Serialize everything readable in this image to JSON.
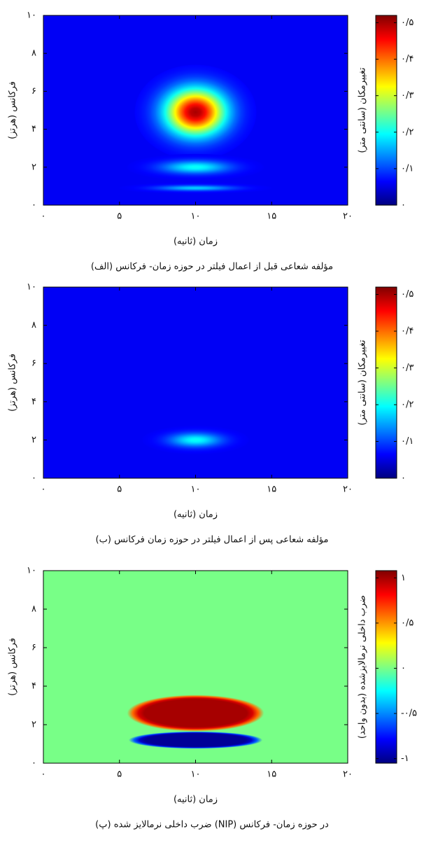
{
  "chart_data": [
    {
      "type": "heatmap",
      "colormap": "jet",
      "caption": "(الف) مؤلفه شعاعی قبل از اعمال فیلتر در حوزه زمان- فرکانس",
      "xlabel": "زمان (ثانیه)",
      "ylabel": "فرکانس (هرتز)",
      "colorbar_label": "تغییرمکان (سانتی متر)",
      "xlim": [
        0,
        20
      ],
      "ylim": [
        0,
        10
      ],
      "xticks": [
        {
          "value": 0,
          "label": "۰"
        },
        {
          "value": 5,
          "label": "۵"
        },
        {
          "value": 10,
          "label": "۱۰"
        },
        {
          "value": 15,
          "label": "۱۵"
        },
        {
          "value": 20,
          "label": "۲۰"
        }
      ],
      "yticks": [
        {
          "value": 0,
          "label": "۰"
        },
        {
          "value": 2,
          "label": "۲"
        },
        {
          "value": 4,
          "label": "۴"
        },
        {
          "value": 6,
          "label": "۶"
        },
        {
          "value": 8,
          "label": "۸"
        },
        {
          "value": 10,
          "label": "۱۰"
        }
      ],
      "clim": [
        0,
        0.52
      ],
      "cticks": [
        {
          "value": 0,
          "label": "۰"
        },
        {
          "value": 0.1,
          "label": "۰/۱"
        },
        {
          "value": 0.2,
          "label": "۰/۲"
        },
        {
          "value": 0.3,
          "label": "۰/۳"
        },
        {
          "value": 0.4,
          "label": "۰/۴"
        },
        {
          "value": 0.5,
          "label": "۰/۵"
        }
      ],
      "background_value": 0.06,
      "profile": "gaussian",
      "blobs": [
        {
          "x": 10,
          "y": 4.9,
          "width": 8,
          "height": 5,
          "value": 0.5
        },
        {
          "x": 10,
          "y": 2.0,
          "width": 9,
          "height": 1.4,
          "value": 0.2
        },
        {
          "x": 10,
          "y": 0.9,
          "width": 10,
          "height": 0.6,
          "value": 0.17
        }
      ]
    },
    {
      "type": "heatmap",
      "colormap": "jet",
      "caption": "(ب) مؤلفه شعاعی پس از اعمال فیلتر در حوزه زمان فرکانس",
      "xlabel": "زمان (ثانیه)",
      "ylabel": "فرکانس (هرتز)",
      "colorbar_label": "تغییرمکان (سانتی متر)",
      "xlim": [
        0,
        20
      ],
      "ylim": [
        0,
        10
      ],
      "xticks": [
        {
          "value": 0,
          "label": "۰"
        },
        {
          "value": 5,
          "label": "۵"
        },
        {
          "value": 10,
          "label": "۱۰"
        },
        {
          "value": 15,
          "label": "۱۵"
        },
        {
          "value": 20,
          "label": "۲۰"
        }
      ],
      "yticks": [
        {
          "value": 0,
          "label": "۰"
        },
        {
          "value": 2,
          "label": "۲"
        },
        {
          "value": 4,
          "label": "۴"
        },
        {
          "value": 6,
          "label": "۶"
        },
        {
          "value": 8,
          "label": "۸"
        },
        {
          "value": 10,
          "label": "۱۰"
        }
      ],
      "clim": [
        0,
        0.52
      ],
      "cticks": [
        {
          "value": 0,
          "label": "۰"
        },
        {
          "value": 0.1,
          "label": "۰/۱"
        },
        {
          "value": 0.2,
          "label": "۰/۲"
        },
        {
          "value": 0.3,
          "label": "۰/۳"
        },
        {
          "value": 0.4,
          "label": "۰/۴"
        },
        {
          "value": 0.5,
          "label": "۰/۵"
        }
      ],
      "background_value": 0.06,
      "profile": "gaussian",
      "blobs": [
        {
          "x": 10,
          "y": 2.0,
          "width": 7,
          "height": 1.5,
          "value": 0.2
        }
      ]
    },
    {
      "type": "heatmap",
      "colormap": "jet",
      "caption": "(پ) ضرب داخلی نرمالایز شده (NIP) در حوزه زمان- فرکانس",
      "xlabel": "زمان (ثانیه)",
      "ylabel": "فرکانس (هرتز)",
      "colorbar_label": "ضرب داخلی نرمالایزشده (بدون واحد)",
      "xlim": [
        0,
        20
      ],
      "ylim": [
        0,
        10
      ],
      "xticks": [
        {
          "value": 0,
          "label": "۰"
        },
        {
          "value": 5,
          "label": "۵"
        },
        {
          "value": 10,
          "label": "۱۰"
        },
        {
          "value": 15,
          "label": "۱۵"
        },
        {
          "value": 20,
          "label": "۲۰"
        }
      ],
      "yticks": [
        {
          "value": 0,
          "label": "۰"
        },
        {
          "value": 2,
          "label": "۲"
        },
        {
          "value": 4,
          "label": "۴"
        },
        {
          "value": 6,
          "label": "۶"
        },
        {
          "value": 8,
          "label": "۸"
        },
        {
          "value": 10,
          "label": "۱۰"
        }
      ],
      "clim": [
        -1.05,
        1.08
      ],
      "cticks": [
        {
          "value": -1,
          "label": "-۱"
        },
        {
          "value": -0.5,
          "label": "-۰/۵"
        },
        {
          "value": 0,
          "label": "۰"
        },
        {
          "value": 0.5,
          "label": "۰/۵"
        },
        {
          "value": 1,
          "label": "۱"
        }
      ],
      "background_value": 0,
      "profile": "plateau",
      "blobs": [
        {
          "x": 10,
          "y": 2.6,
          "width": 9,
          "height": 1.9,
          "value": 1
        },
        {
          "x": 10,
          "y": 1.2,
          "width": 8.8,
          "height": 0.9,
          "value": -1
        }
      ]
    }
  ]
}
